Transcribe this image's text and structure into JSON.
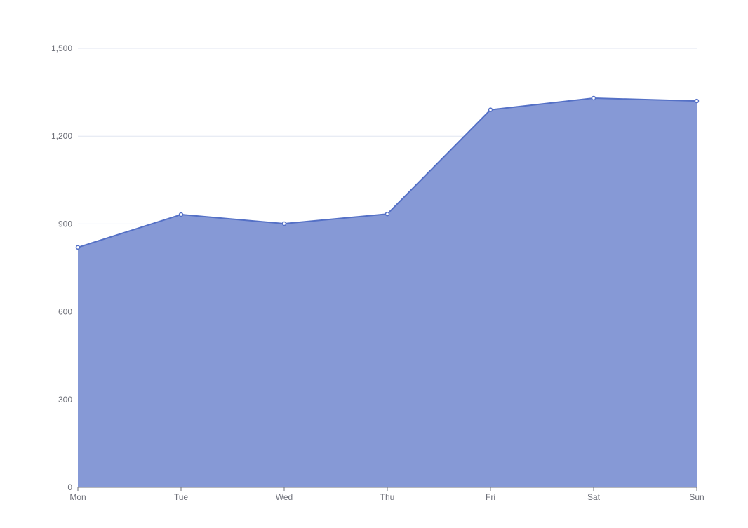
{
  "chart_data": {
    "type": "area",
    "categories": [
      "Mon",
      "Tue",
      "Wed",
      "Thu",
      "Fri",
      "Sat",
      "Sun"
    ],
    "series": [
      {
        "values": [
          820,
          932,
          901,
          934,
          1290,
          1330,
          1320
        ]
      }
    ],
    "ylim": [
      0,
      1500
    ],
    "yticks": [
      0,
      300,
      600,
      900,
      1200,
      1500
    ],
    "ytick_labels": [
      "0",
      "300",
      "600",
      "900",
      "1,200",
      "1,500"
    ],
    "grid": true,
    "colors": {
      "line": "#5470c6",
      "area": "#8699d6",
      "grid": "#e0e6f1",
      "axis": "#6e7079",
      "point_fill": "#ffffff"
    }
  }
}
